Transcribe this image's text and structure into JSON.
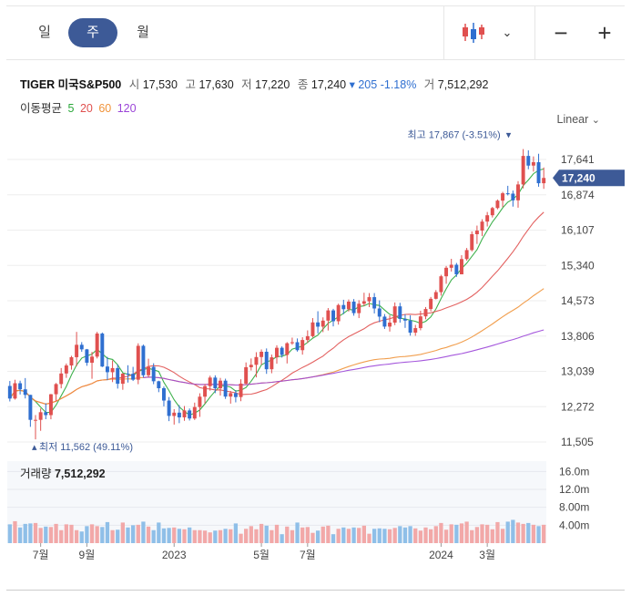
{
  "periods": [
    "일",
    "주",
    "월"
  ],
  "active_period": "주",
  "security": {
    "name": "TIGER 미국S&P500",
    "open_label": "시",
    "open": "17,530",
    "high_label": "고",
    "high": "17,630",
    "low_label": "저",
    "low": "17,220",
    "close_label": "종",
    "close": "17,240",
    "change": "205",
    "change_pct": "-1.18%",
    "volume_label": "거",
    "volume": "7,512,292"
  },
  "ma_legend": {
    "label": "이동평균",
    "items": [
      {
        "period": "5",
        "color": "#2aa83a"
      },
      {
        "period": "20",
        "color": "#e0504f"
      },
      {
        "period": "60",
        "color": "#f0933a"
      },
      {
        "period": "120",
        "color": "#9b45d8"
      }
    ]
  },
  "scale_label": "Linear",
  "chart_data": {
    "type": "candlestick",
    "ylim": [
      11505,
      17641
    ],
    "y_ticks": [
      "17,641",
      "16,874",
      "16,107",
      "15,340",
      "14,573",
      "13,806",
      "13,039",
      "12,272",
      "11,505"
    ],
    "x_ticks": [
      {
        "label": "7월",
        "week": 6
      },
      {
        "label": "9월",
        "week": 15
      },
      {
        "label": "2023",
        "week": 32
      },
      {
        "label": "5월",
        "week": 49
      },
      {
        "label": "7월",
        "week": 58
      },
      {
        "label": "2024",
        "week": 84
      },
      {
        "label": "3월",
        "week": 93
      }
    ],
    "price_label": "17,240",
    "max_label": "최고",
    "max_text": "17,867 (-3.51%)",
    "max_value": 17867,
    "max_week": 97,
    "min_label": "최저",
    "min_text": "11,562 (49.11%)",
    "min_value": 11562,
    "min_week": 5,
    "colors": {
      "up": "#e0504f",
      "down": "#2f6fd0",
      "ma5": "#2aa83a",
      "ma20": "#e0504f",
      "ma60": "#f0933a",
      "ma120": "#9b45d8",
      "vol_up": "#f2a8a8",
      "vol_down": "#8fbfe8"
    },
    "candles": [
      [
        12722,
        12830,
        12386,
        12449
      ],
      [
        12449,
        12857,
        12425,
        12781
      ],
      [
        12781,
        12836,
        12537,
        12649
      ],
      [
        12649,
        12893,
        12451,
        12528
      ],
      [
        12528,
        12530,
        11834,
        11986
      ],
      [
        11986,
        12090,
        11562,
        11986
      ],
      [
        11986,
        12233,
        11748,
        12152
      ],
      [
        12152,
        12345,
        12000,
        12089
      ],
      [
        12089,
        12548,
        11998,
        12542
      ],
      [
        12542,
        12786,
        12384,
        12763
      ],
      [
        12763,
        13111,
        12670,
        12993
      ],
      [
        12993,
        13209,
        12898,
        13167
      ],
      [
        13167,
        13377,
        13076,
        13347
      ],
      [
        13347,
        13896,
        13151,
        13616
      ],
      [
        13616,
        13674,
        13464,
        13517
      ],
      [
        13517,
        13526,
        13160,
        13226
      ],
      [
        13226,
        13462,
        12878,
        13359
      ],
      [
        13359,
        13897,
        13320,
        13860
      ],
      [
        13860,
        13883,
        13132,
        13144
      ],
      [
        13144,
        13354,
        12848,
        13021
      ],
      [
        13021,
        13276,
        12806,
        13110
      ],
      [
        13110,
        13191,
        12665,
        12770
      ],
      [
        12770,
        13002,
        12639,
        12989
      ],
      [
        12989,
        13172,
        12796,
        12986
      ],
      [
        12986,
        13137,
        12830,
        12858
      ],
      [
        12858,
        13648,
        12760,
        13594
      ],
      [
        13594,
        13621,
        12908,
        12955
      ],
      [
        12955,
        13314,
        12906,
        13137
      ],
      [
        13137,
        13215,
        12760,
        12824
      ],
      [
        12824,
        12836,
        12587,
        12673
      ],
      [
        12673,
        12711,
        12279,
        12405
      ],
      [
        12405,
        12481,
        11958,
        12071
      ],
      [
        12071,
        12218,
        11883,
        12142
      ],
      [
        12142,
        12306,
        11914,
        12040
      ],
      [
        12040,
        12286,
        11965,
        12190
      ],
      [
        12190,
        12233,
        11971,
        12015
      ],
      [
        12015,
        12360,
        11983,
        12264
      ],
      [
        12264,
        12563,
        12050,
        12489
      ],
      [
        12489,
        12764,
        12340,
        12718
      ],
      [
        12718,
        12945,
        12620,
        12904
      ],
      [
        12904,
        12953,
        12566,
        12671
      ],
      [
        12671,
        12897,
        12513,
        12837
      ],
      [
        12837,
        12880,
        12441,
        12491
      ],
      [
        12491,
        12614,
        12338,
        12566
      ],
      [
        12566,
        12632,
        12366,
        12481
      ],
      [
        12481,
        12867,
        12391,
        12773
      ],
      [
        12773,
        13233,
        12745,
        13129
      ],
      [
        13129,
        13319,
        13057,
        13181
      ],
      [
        13181,
        13455,
        12908,
        13350
      ],
      [
        13350,
        13515,
        13180,
        13465
      ],
      [
        13465,
        13537,
        12985,
        13085
      ],
      [
        13085,
        13404,
        12998,
        13344
      ],
      [
        13344,
        13606,
        13205,
        13551
      ],
      [
        13551,
        13582,
        13339,
        13396
      ],
      [
        13396,
        13674,
        13211,
        13650
      ],
      [
        13650,
        13772,
        13617,
        13672
      ],
      [
        13672,
        13754,
        13468,
        13499
      ],
      [
        13499,
        13780,
        13402,
        13720
      ],
      [
        13720,
        13929,
        13656,
        13803
      ],
      [
        13803,
        14196,
        13775,
        14102
      ],
      [
        14102,
        14345,
        13863,
        14010
      ],
      [
        14010,
        14212,
        13891,
        14141
      ],
      [
        14141,
        14414,
        13927,
        14363
      ],
      [
        14363,
        14397,
        14016,
        14128
      ],
      [
        14128,
        14509,
        14054,
        14480
      ],
      [
        14480,
        14594,
        14282,
        14389
      ],
      [
        14389,
        14600,
        14338,
        14553
      ],
      [
        14553,
        14609,
        14248,
        14304
      ],
      [
        14304,
        14585,
        14196,
        14508
      ],
      [
        14508,
        14747,
        14456,
        14561
      ],
      [
        14561,
        14739,
        14434,
        14651
      ],
      [
        14651,
        14739,
        14297,
        14405
      ],
      [
        14405,
        14581,
        14107,
        14228
      ],
      [
        14228,
        14284,
        13960,
        14011
      ],
      [
        14011,
        14257,
        13903,
        14098
      ],
      [
        14098,
        14536,
        14044,
        14451
      ],
      [
        14451,
        14528,
        14098,
        14178
      ],
      [
        14178,
        14279,
        13983,
        14142
      ],
      [
        14142,
        14256,
        13815,
        13880
      ],
      [
        13880,
        14049,
        13811,
        13978
      ],
      [
        13978,
        14355,
        13931,
        14233
      ],
      [
        14233,
        14436,
        14171,
        14393
      ],
      [
        14393,
        14655,
        14341,
        14615
      ],
      [
        14615,
        14805,
        14601,
        14760
      ],
      [
        14760,
        15136,
        14684,
        15104
      ],
      [
        15104,
        15328,
        14941,
        15289
      ],
      [
        15289,
        15484,
        15207,
        15355
      ],
      [
        15355,
        15394,
        15091,
        15147
      ],
      [
        15147,
        15562,
        15146,
        15478
      ],
      [
        15478,
        15719,
        15445,
        15673
      ],
      [
        15673,
        16080,
        15644,
        16018
      ],
      [
        16018,
        16205,
        15807,
        16096
      ],
      [
        16096,
        16343,
        15978,
        16292
      ],
      [
        16292,
        16501,
        16186,
        16430
      ],
      [
        16430,
        16612,
        16381,
        16586
      ],
      [
        16586,
        16772,
        16558,
        16747
      ],
      [
        16747,
        16938,
        16607,
        16907
      ],
      [
        16907,
        17069,
        16861,
        16899
      ],
      [
        16899,
        16966,
        16617,
        16754
      ],
      [
        16754,
        17170,
        16594,
        17099
      ],
      [
        17099,
        17867,
        17013,
        17718
      ],
      [
        17718,
        17840,
        17429,
        17508
      ],
      [
        17508,
        17707,
        17378,
        17582
      ],
      [
        17582,
        17765,
        17049,
        17125
      ],
      [
        17125,
        17468,
        17003,
        17240
      ]
    ],
    "volumes": [
      4.2,
      4.9,
      3.5,
      4.3,
      4.4,
      4.5,
      3.4,
      3.7,
      3.6,
      4.3,
      2.9,
      4.2,
      4.1,
      2.9,
      2.6,
      3.8,
      4.2,
      3.8,
      3.6,
      4.7,
      2.9,
      3.0,
      4.6,
      3.5,
      4.0,
      4.1,
      4.8,
      3.7,
      2.9,
      4.6,
      3.3,
      3.4,
      3.5,
      3.2,
      3.1,
      3.5,
      2.9,
      2.9,
      2.8,
      2.4,
      2.8,
      2.9,
      3.2,
      3.1,
      4.4,
      2.1,
      3.2,
      3.8,
      3.1,
      4.3,
      3.9,
      2.9,
      4.1,
      2.0,
      3.7,
      2.9,
      4.6,
      3.5,
      3.6,
      2.3,
      2.8,
      3.7,
      3.9,
      2.0,
      3.2,
      3.5,
      3.2,
      3.5,
      3.4,
      3.9,
      2.1,
      3.2,
      3.3,
      3.2,
      3.1,
      3.4,
      3.8,
      3.5,
      3.8,
      3.3,
      2.8,
      3.5,
      3.1,
      3.8,
      4.5,
      3.0,
      4.2,
      4.1,
      4.4,
      4.8,
      2.9,
      3.6,
      4.2,
      4.1,
      3.1,
      4.7,
      3.2,
      4.8,
      5.2,
      4.6,
      4.3,
      4.5,
      4.1,
      3.8,
      4.1
    ],
    "vol_ticks": [
      {
        "value": 4,
        "label": "4.00m"
      },
      {
        "value": 8,
        "label": "8.00m"
      },
      {
        "value": 12,
        "label": "12.0m"
      },
      {
        "value": 16,
        "label": "16.0m"
      }
    ],
    "vol_ylim": [
      0,
      17.5
    ],
    "volume_label": "거래량",
    "volume_value": "7,512,292"
  }
}
